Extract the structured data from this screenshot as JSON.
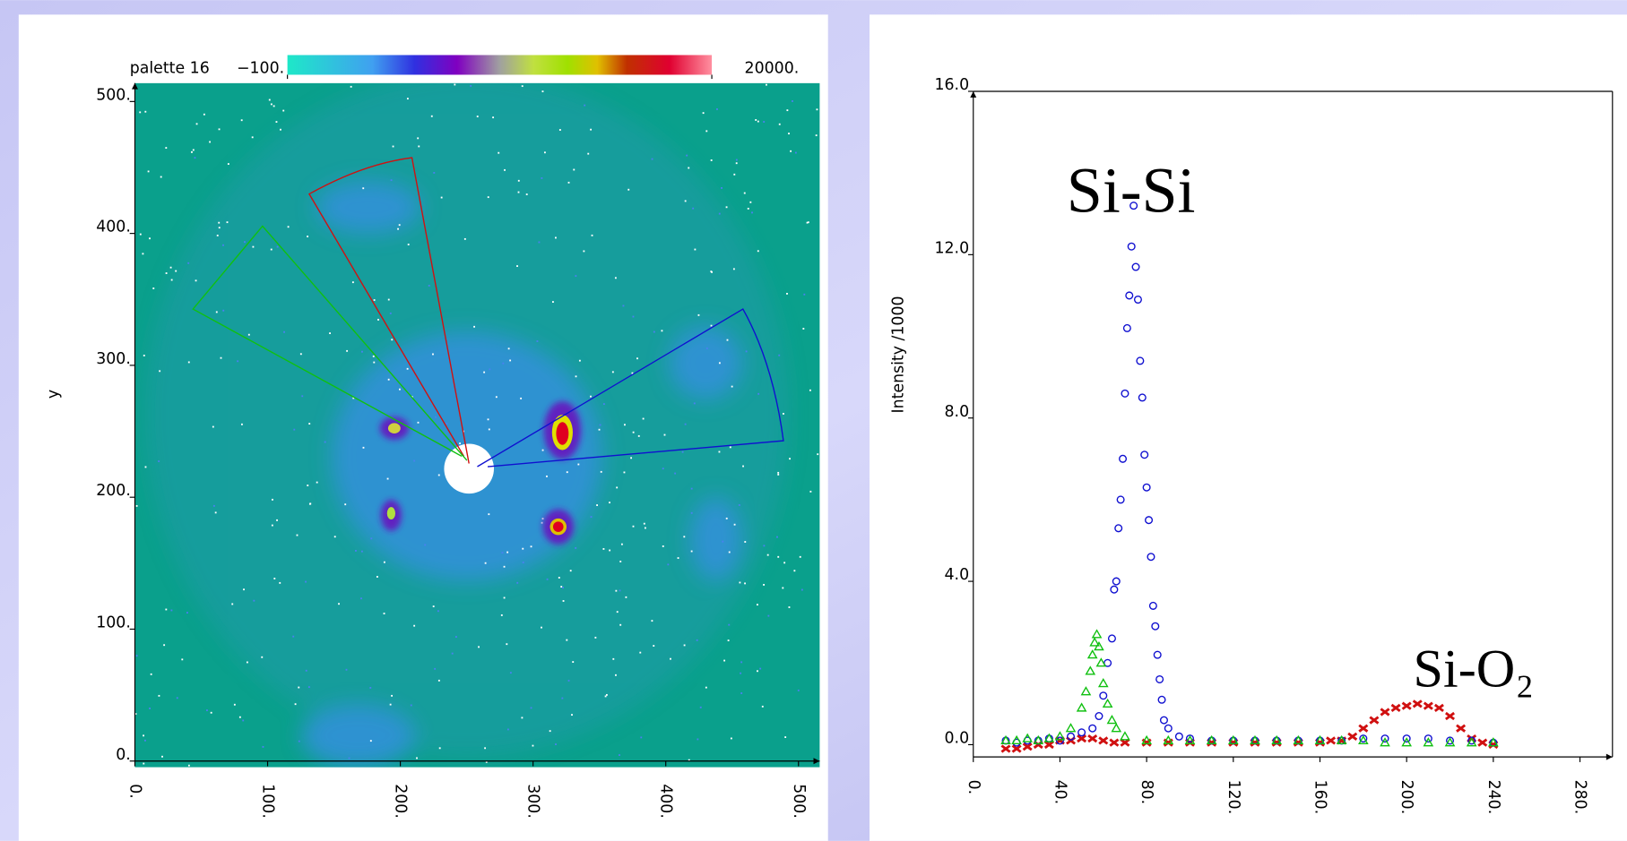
{
  "chart_data": [
    {
      "type": "image",
      "colorbar": {
        "label": "palette 16",
        "ticks": [
          {
            "value": -100,
            "label": "−100."
          },
          {
            "value": 20000,
            "label": "20000."
          }
        ]
      },
      "ylabel": "y",
      "xlim": [
        0,
        516
      ],
      "ylim": [
        0,
        514
      ],
      "xticks": [
        {
          "value": 0,
          "label": "0."
        },
        {
          "value": 100,
          "label": "100."
        },
        {
          "value": 200,
          "label": "200."
        },
        {
          "value": 300,
          "label": "300."
        },
        {
          "value": 400,
          "label": "400."
        },
        {
          "value": 500,
          "label": "500."
        }
      ],
      "yticks": [
        {
          "value": 0,
          "label": "0."
        },
        {
          "value": 100,
          "label": "100."
        },
        {
          "value": 200,
          "label": "200."
        },
        {
          "value": 300,
          "label": "300."
        },
        {
          "value": 400,
          "label": "400."
        },
        {
          "value": 500,
          "label": "500."
        }
      ]
    },
    {
      "type": "scatter",
      "ylabel": "Intensity   /1000",
      "annotations": [
        "Si-Si",
        "Si-O₂"
      ],
      "xlim": [
        0,
        295
      ],
      "ylim": [
        -0.3,
        16
      ],
      "xticks": [
        {
          "value": 0,
          "label": "0."
        },
        {
          "value": 40,
          "label": "40."
        },
        {
          "value": 80,
          "label": "80."
        },
        {
          "value": 120,
          "label": "120."
        },
        {
          "value": 160,
          "label": "160."
        },
        {
          "value": 200,
          "label": "200."
        },
        {
          "value": 240,
          "label": "240."
        },
        {
          "value": 280,
          "label": "280."
        }
      ],
      "yticks": [
        {
          "value": 0,
          "label": "0.0"
        },
        {
          "value": 4,
          "label": "4.0"
        },
        {
          "value": 8,
          "label": "8.0"
        },
        {
          "value": 12,
          "label": "12.0"
        },
        {
          "value": 16,
          "label": "16.0"
        }
      ],
      "series": [
        {
          "color": "#d01010",
          "marker": "cross",
          "x": [
            15,
            20,
            25,
            30,
            35,
            40,
            45,
            50,
            55,
            60,
            65,
            70,
            80,
            90,
            100,
            110,
            120,
            130,
            140,
            150,
            160,
            165,
            170,
            175,
            180,
            185,
            190,
            195,
            200,
            205,
            210,
            215,
            220,
            225,
            230,
            235,
            240
          ],
          "values": [
            -0.1,
            -0.1,
            -0.05,
            0,
            0,
            0.1,
            0.1,
            0.15,
            0.15,
            0.1,
            0.05,
            0.05,
            0.05,
            0.05,
            0.05,
            0.05,
            0.05,
            0.05,
            0.05,
            0.05,
            0.05,
            0.1,
            0.1,
            0.2,
            0.4,
            0.6,
            0.8,
            0.9,
            0.95,
            1,
            0.95,
            0.9,
            0.7,
            0.4,
            0.15,
            0.05,
            0
          ]
        },
        {
          "color": "#1010d0",
          "marker": "circle",
          "x": [
            15,
            20,
            25,
            30,
            35,
            40,
            45,
            50,
            55,
            58,
            60,
            62,
            64,
            65,
            66,
            67,
            68,
            69,
            70,
            71,
            72,
            73,
            74,
            75,
            76,
            77,
            78,
            79,
            80,
            81,
            82,
            83,
            84,
            85,
            86,
            87,
            88,
            90,
            95,
            100,
            110,
            120,
            130,
            140,
            150,
            160,
            170,
            180,
            190,
            200,
            210,
            220,
            230,
            240
          ],
          "values": [
            0.1,
            0.05,
            0.1,
            0.1,
            0.15,
            0.1,
            0.2,
            0.3,
            0.4,
            0.7,
            1.2,
            2,
            2.6,
            3.8,
            4,
            5.3,
            6,
            7,
            8.6,
            10.2,
            11,
            12.2,
            13.2,
            11.7,
            10.9,
            9.4,
            8.5,
            7.1,
            6.3,
            5.5,
            4.6,
            3.4,
            2.9,
            2.2,
            1.6,
            1.1,
            0.6,
            0.4,
            0.2,
            0.15,
            0.1,
            0.1,
            0.1,
            0.1,
            0.1,
            0.1,
            0.1,
            0.15,
            0.15,
            0.15,
            0.15,
            0.1,
            0.1,
            0.05
          ]
        },
        {
          "color": "#10c010",
          "marker": "triangle",
          "x": [
            15,
            20,
            25,
            30,
            35,
            40,
            45,
            50,
            52,
            54,
            55,
            56,
            57,
            58,
            59,
            60,
            62,
            64,
            66,
            70,
            80,
            90,
            100,
            110,
            120,
            130,
            140,
            150,
            160,
            170,
            180,
            190,
            200,
            210,
            220,
            230,
            240
          ],
          "values": [
            0.1,
            0.1,
            0.15,
            0.1,
            0.15,
            0.2,
            0.4,
            0.9,
            1.3,
            1.8,
            2.2,
            2.5,
            2.7,
            2.4,
            2,
            1.5,
            1,
            0.6,
            0.4,
            0.2,
            0.1,
            0.1,
            0.1,
            0.1,
            0.1,
            0.1,
            0.1,
            0.1,
            0.1,
            0.1,
            0.1,
            0.05,
            0.05,
            0.05,
            0.05,
            0.05,
            0.05
          ]
        }
      ]
    }
  ]
}
